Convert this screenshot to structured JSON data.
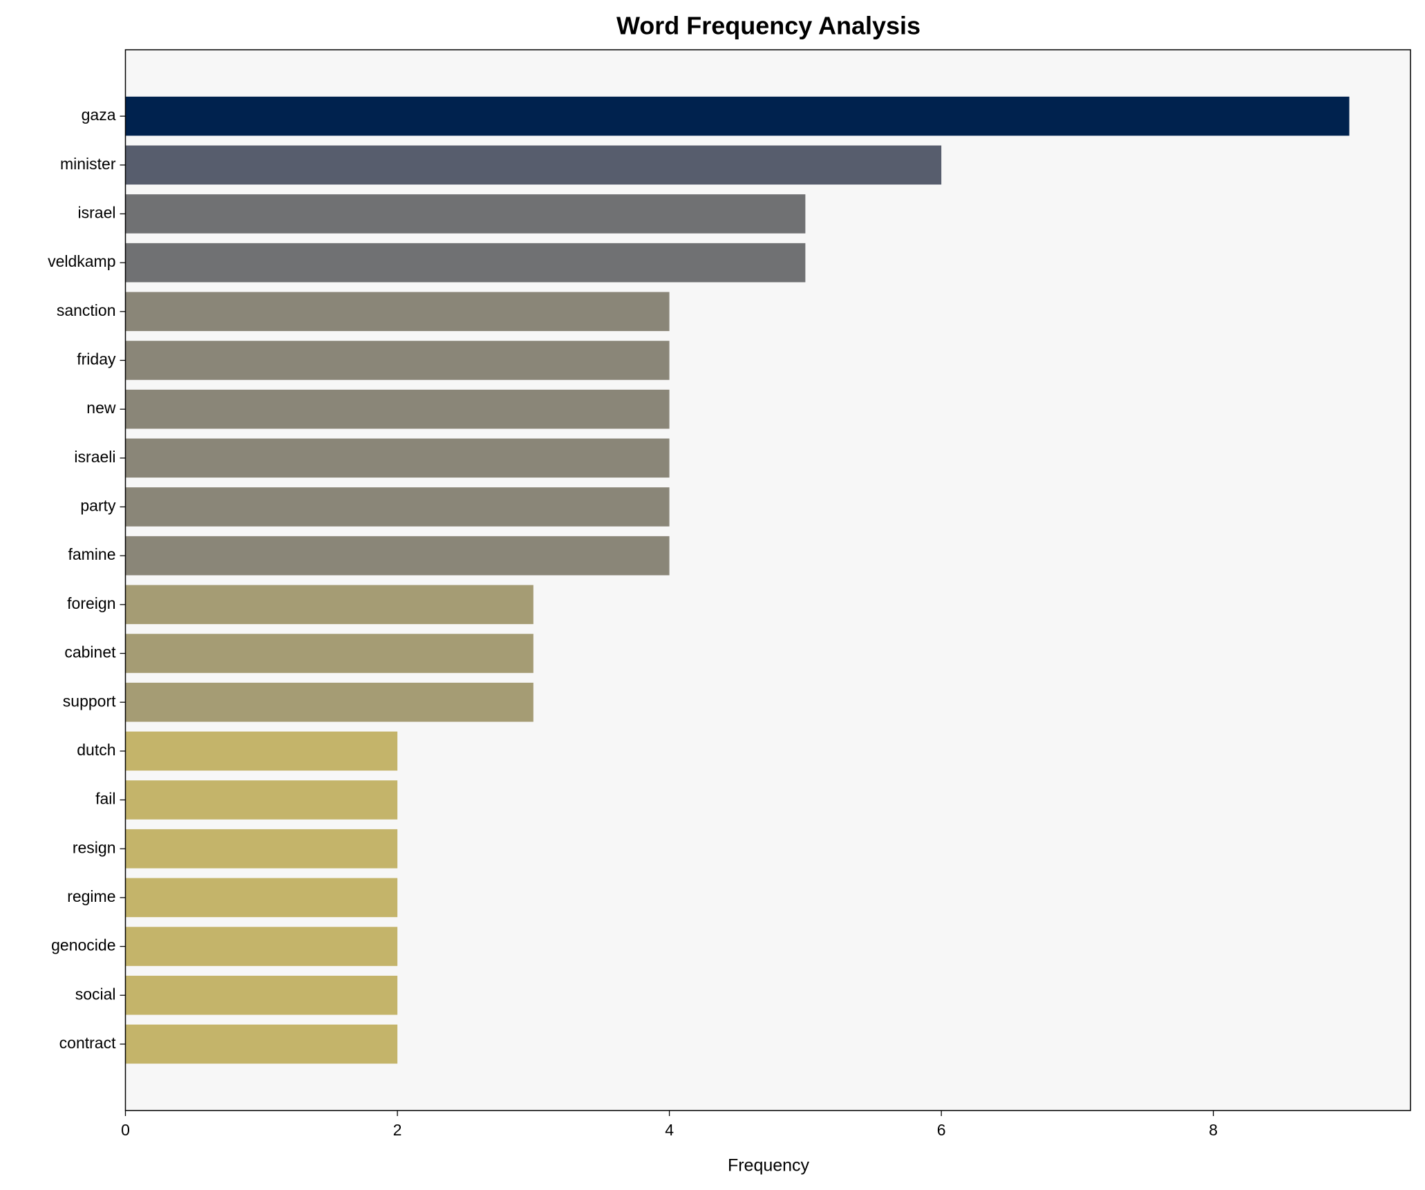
{
  "chart_data": {
    "type": "barh",
    "title": "Word Frequency Analysis",
    "x_label": "Frequency",
    "categories": [
      "gaza",
      "minister",
      "israel",
      "veldkamp",
      "sanction",
      "friday",
      "new",
      "israeli",
      "party",
      "famine",
      "foreign",
      "cabinet",
      "support",
      "dutch",
      "fail",
      "resign",
      "regime",
      "genocide",
      "social",
      "contract"
    ],
    "values": [
      9,
      6,
      5,
      5,
      4,
      4,
      4,
      4,
      4,
      4,
      3,
      3,
      3,
      2,
      2,
      2,
      2,
      2,
      2,
      2
    ],
    "colors": [
      "#00224e",
      "#575d6d",
      "#707173",
      "#707173",
      "#8a8678",
      "#8a8678",
      "#8a8678",
      "#8a8678",
      "#8a8678",
      "#8a8678",
      "#a59c74",
      "#a59c74",
      "#a59c74",
      "#c4b46a",
      "#c4b46a",
      "#c4b46a",
      "#c4b46a",
      "#c4b46a",
      "#c4b46a",
      "#c4b46a"
    ],
    "xlim": [
      0,
      9.45
    ],
    "xticks": [
      0,
      2,
      4,
      6,
      8
    ],
    "background": "#f7f7f7"
  }
}
